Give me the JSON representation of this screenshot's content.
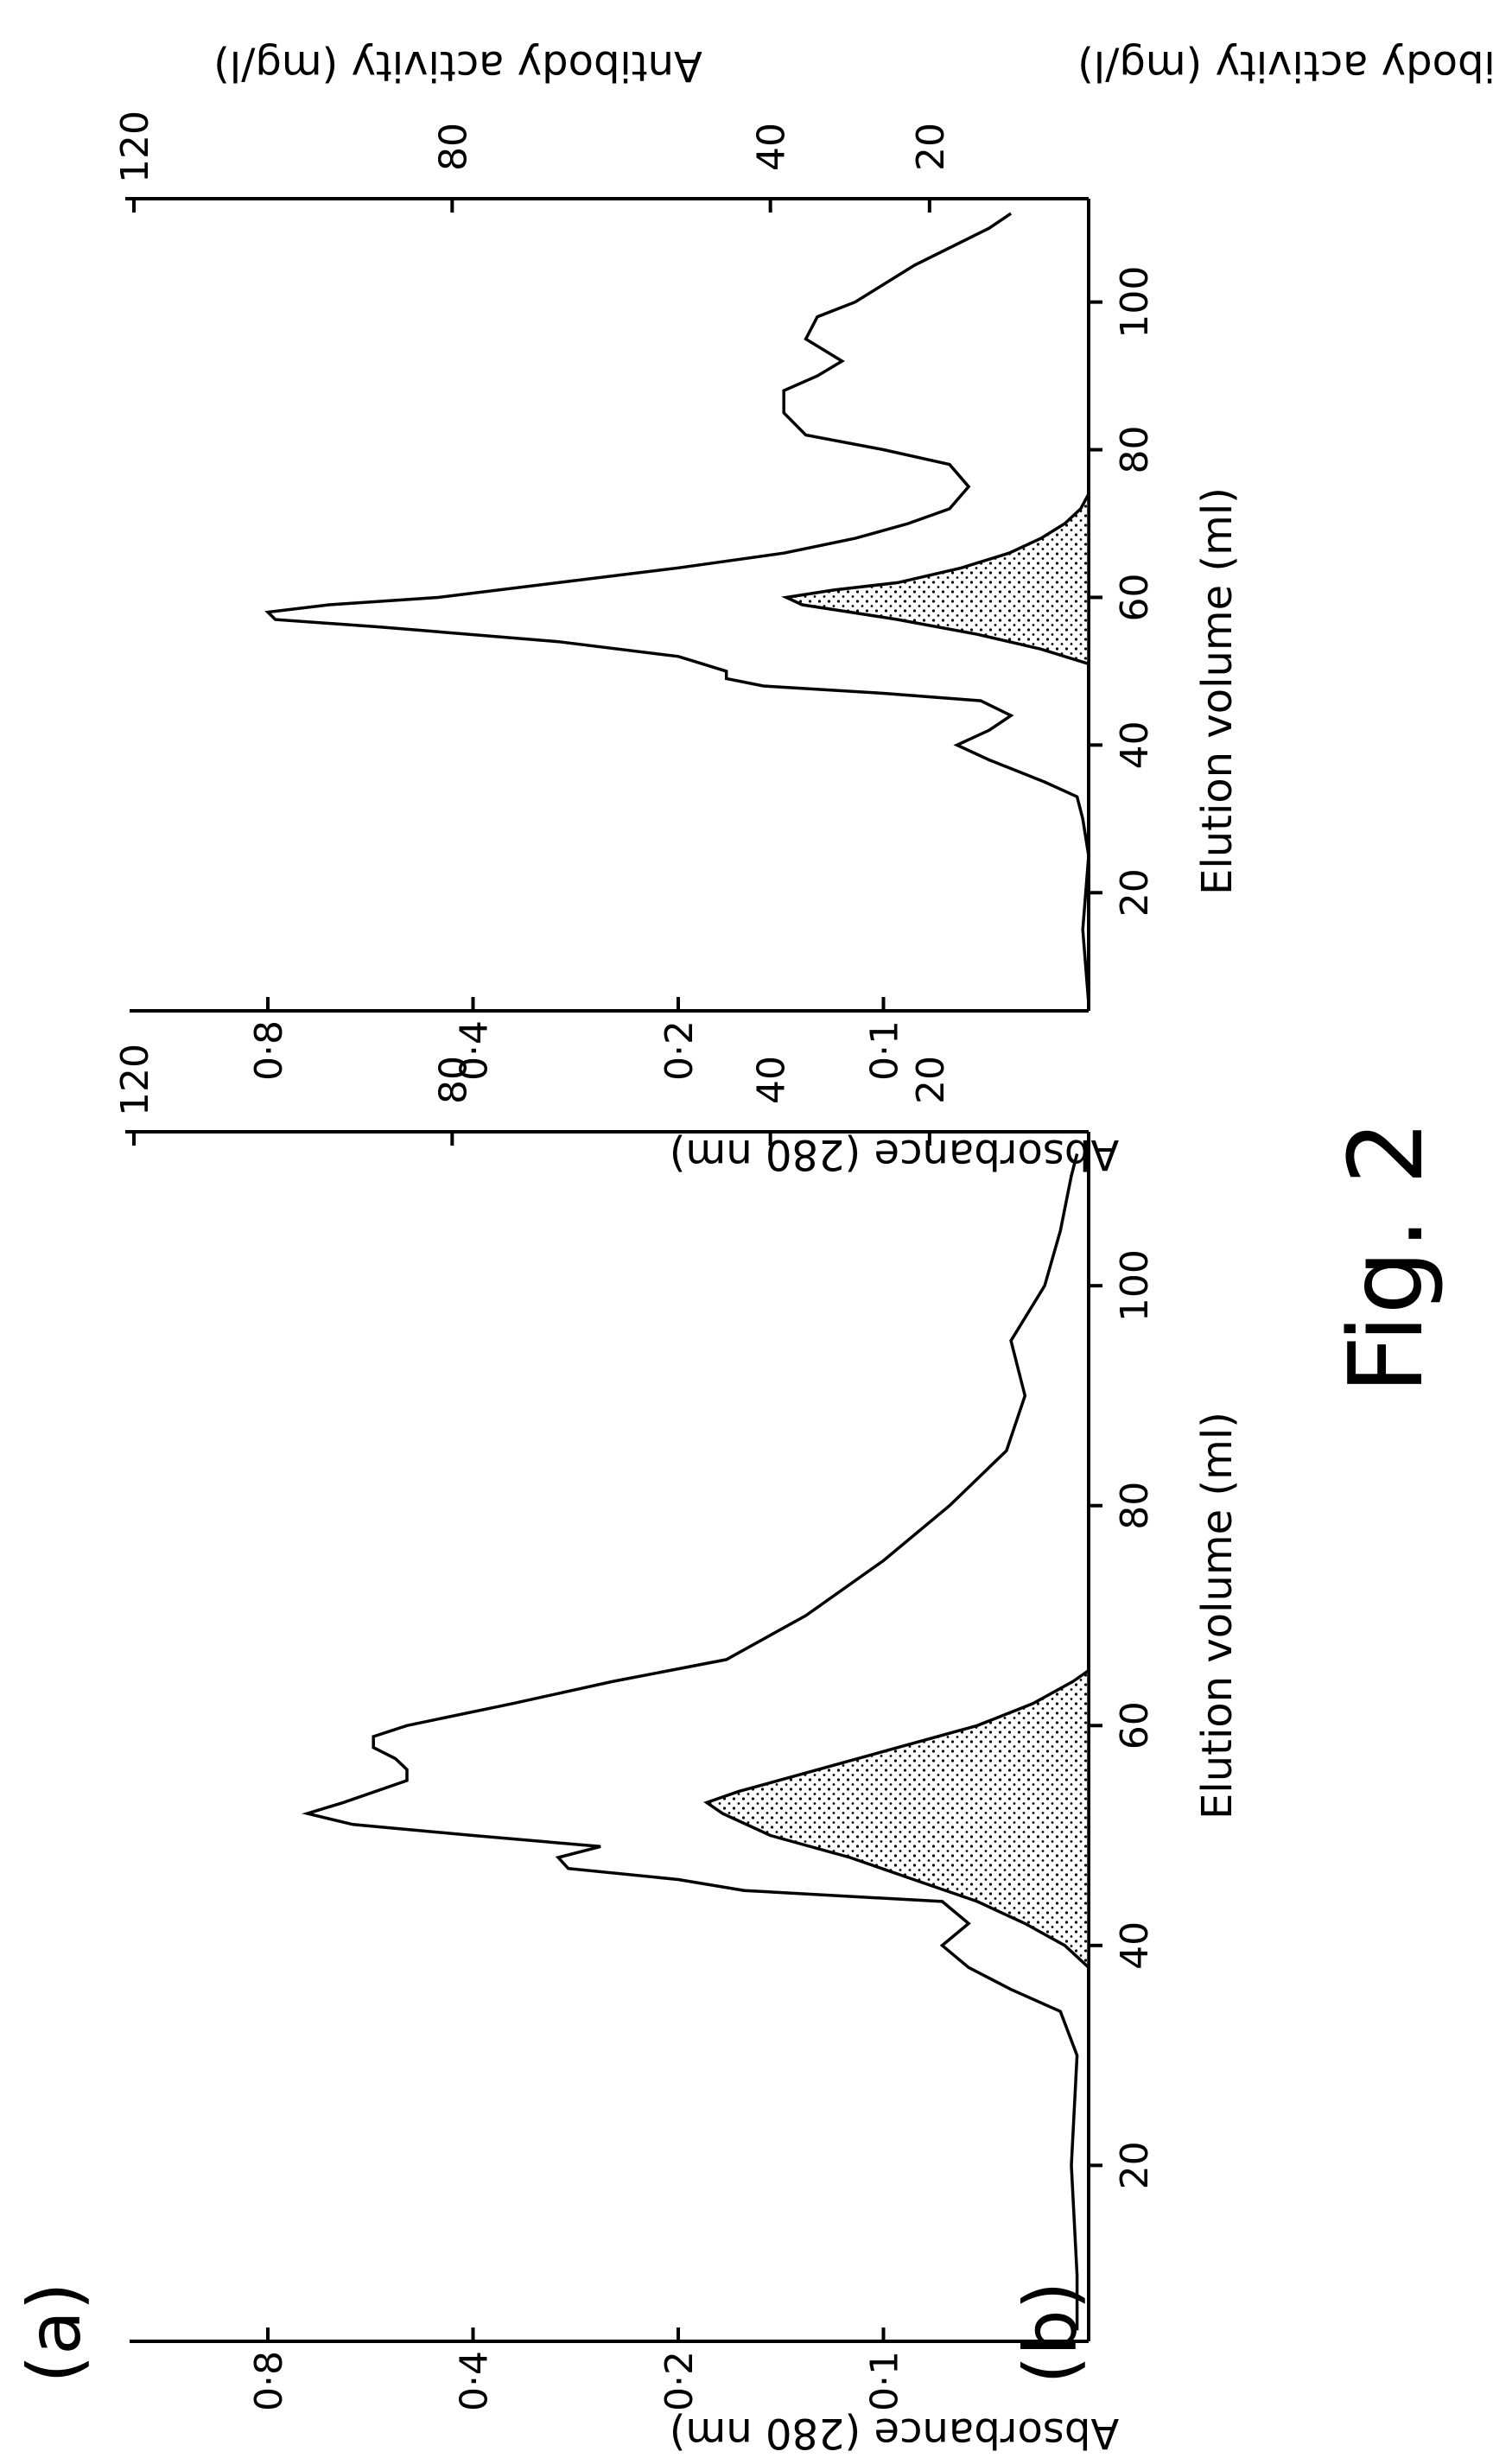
{
  "figure_label": "Fig. 2",
  "chart_data": [
    {
      "type": "area",
      "panel_label": "(a)",
      "xlabel": "Elution volume (ml)",
      "ylabel": "Absorbance (280 nm)",
      "y2label": "Antibody activity (mg/l)",
      "xlim": [
        4,
        114
      ],
      "x_ticks": [
        20,
        40,
        60,
        80,
        100
      ],
      "y_scale": "log",
      "y_ticks": [
        0.1,
        0.2,
        0.4,
        0.8
      ],
      "y_tick_labels": [
        "0·1",
        "0·2",
        "0·4",
        "0·8"
      ],
      "y2_ticks": [
        20,
        40,
        80,
        120
      ],
      "series": [
        {
          "axis": "left",
          "style": "line",
          "x": [
            5,
            10,
            20,
            30,
            34,
            36,
            38,
            40,
            42,
            44,
            45,
            46,
            47,
            48,
            49,
            50,
            51,
            52,
            53,
            55,
            56,
            57,
            58,
            59,
            60,
            62,
            64,
            66,
            70,
            75,
            80,
            85,
            90,
            95,
            100,
            105,
            110,
            112
          ],
          "y": [
            0.052,
            0.052,
            0.053,
            0.052,
            0.055,
            0.065,
            0.075,
            0.082,
            0.075,
            0.082,
            0.16,
            0.2,
            0.29,
            0.3,
            0.26,
            0.4,
            0.6,
            0.7,
            0.62,
            0.5,
            0.5,
            0.52,
            0.56,
            0.56,
            0.5,
            0.35,
            0.25,
            0.17,
            0.13,
            0.1,
            0.08,
            0.066,
            0.062,
            0.065,
            0.058,
            0.055,
            0.053,
            0.052
          ]
        },
        {
          "axis": "right",
          "style": "shaded",
          "x": [
            38,
            40,
            42,
            44,
            46,
            48,
            50,
            52,
            53,
            54,
            56,
            58,
            60,
            62,
            64,
            65
          ],
          "y": [
            0,
            3,
            8,
            14,
            22,
            30,
            40,
            46,
            48,
            44,
            34,
            24,
            14,
            7,
            2,
            0
          ]
        }
      ]
    },
    {
      "type": "area",
      "panel_label": "(b)",
      "xlabel": "Elution volume (ml)",
      "ylabel": "Absorbance (280 nm)",
      "y2label": "Antibody activity (mg/l)",
      "xlim": [
        4,
        114
      ],
      "x_ticks": [
        20,
        40,
        60,
        80,
        100
      ],
      "y_scale": "log",
      "y_ticks": [
        0.1,
        0.2,
        0.4,
        0.8
      ],
      "y_tick_labels": [
        "0·1",
        "0·2",
        "0·4",
        "0·8"
      ],
      "y2_ticks": [
        20,
        40,
        80,
        120
      ],
      "series": [
        {
          "axis": "left",
          "style": "line",
          "x": [
            5,
            15,
            25,
            30,
            33,
            35,
            38,
            40,
            42,
            44,
            46,
            47,
            48,
            49,
            50,
            52,
            54,
            56,
            57,
            58,
            59,
            60,
            62,
            64,
            66,
            68,
            70,
            72,
            75,
            78,
            80,
            82,
            85,
            88,
            90,
            92,
            95,
            98,
            100,
            105,
            110,
            112
          ],
          "y": [
            0.05,
            0.051,
            0.05,
            0.051,
            0.052,
            0.058,
            0.07,
            0.078,
            0.07,
            0.065,
            0.072,
            0.1,
            0.15,
            0.17,
            0.17,
            0.2,
            0.3,
            0.55,
            0.78,
            0.8,
            0.65,
            0.45,
            0.3,
            0.2,
            0.14,
            0.11,
            0.092,
            0.08,
            0.075,
            0.08,
            0.1,
            0.13,
            0.14,
            0.14,
            0.125,
            0.115,
            0.13,
            0.125,
            0.11,
            0.09,
            0.07,
            0.065
          ]
        },
        {
          "axis": "right",
          "style": "shaded",
          "x": [
            51,
            53,
            55,
            57,
            58,
            59,
            60,
            61,
            62,
            64,
            66,
            68,
            70,
            72,
            74
          ],
          "y": [
            0,
            6,
            14,
            24,
            30,
            36,
            38,
            32,
            24,
            16,
            10,
            6,
            3,
            1,
            0
          ]
        }
      ]
    }
  ]
}
